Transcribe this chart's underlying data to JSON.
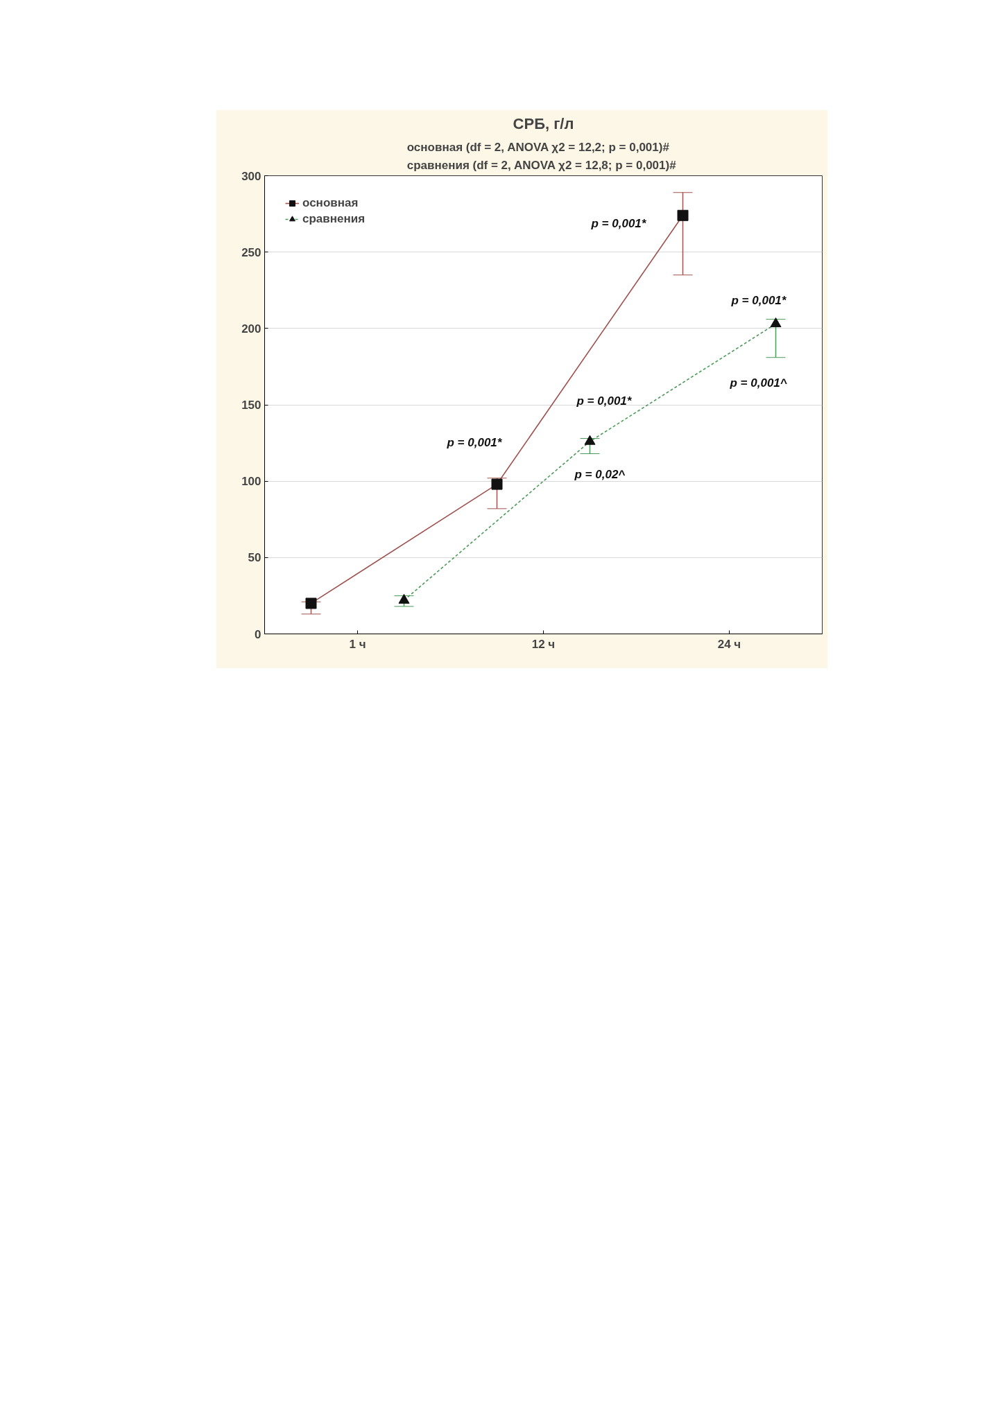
{
  "chart_data": {
    "type": "line",
    "title": "СРБ, г/л",
    "subtitle": "основная    (df = 2, ANOVA χ2 = 12,2; p = 0,001)#\nсравнения (df = 2, ANOVA χ2 = 12,8; p = 0,001)#",
    "categories": [
      "1 ч",
      "12 ч",
      "24 ч"
    ],
    "series": [
      {
        "name": "основная",
        "color": "#a0524f",
        "values": [
          20,
          98,
          274
        ],
        "errors": [
          [
            13,
            21
          ],
          [
            82,
            102
          ],
          [
            235,
            289
          ]
        ],
        "marker": "square",
        "line_style": "solid"
      },
      {
        "name": "сравнения",
        "color": "#4c9a5a",
        "values": [
          22,
          126,
          203
        ],
        "errors": [
          [
            18,
            25
          ],
          [
            118,
            128
          ],
          [
            181,
            206
          ]
        ],
        "marker": "triangle",
        "line_style": "dashed"
      }
    ],
    "ylim": [
      0,
      300
    ],
    "yticks": [
      0,
      50,
      100,
      150,
      200,
      250,
      300
    ],
    "grid": "y",
    "legend": "top left",
    "annotations": [
      "p = 0,001*",
      "p = 0,001*",
      "p = 0,001*",
      "p = 0,02^",
      "p = 0,001*",
      "p = 0,001^"
    ]
  }
}
